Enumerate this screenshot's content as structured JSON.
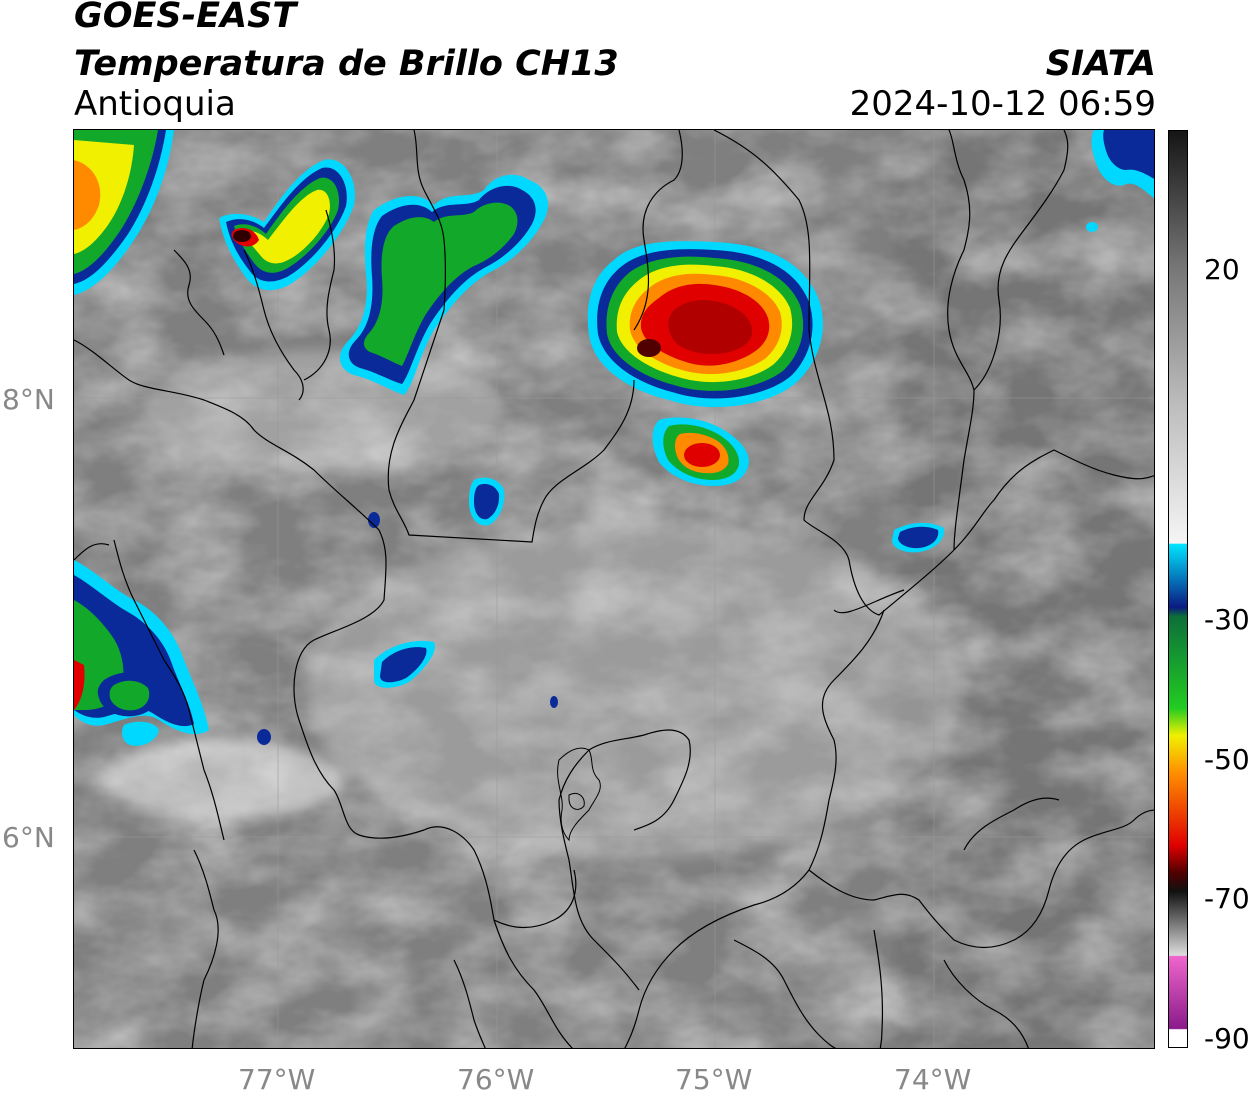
{
  "header": {
    "satellite": "GOES-EAST",
    "product": "Temperatura de Brillo CH13",
    "region": "Antioquia",
    "agency": "SIATA",
    "datetime": "2024-10-12 06:59"
  },
  "map": {
    "lat_ticks": [
      "8°N",
      "6°N"
    ],
    "lon_ticks": [
      "77°W",
      "76°W",
      "75°W",
      "74°W"
    ],
    "grid": true,
    "colors": {
      "background_gray": "#7f7f7f",
      "cloud_white": "#e8e8e8",
      "cold_cyan": "#00c8ff",
      "cold_blue": "#0a2a9a",
      "cold_green": "#12a82a",
      "cold_yellow": "#f0f000",
      "cold_orange": "#ff8a00",
      "cold_red": "#e00000",
      "coldest_dark": "#300000"
    }
  },
  "colorbar": {
    "ticks": [
      "20",
      "-30",
      "-50",
      "-70",
      "-90"
    ],
    "stops": [
      {
        "value": 30,
        "color": "#1a1a1a"
      },
      {
        "value": 20,
        "color": "#7a7a7a"
      },
      {
        "value": 0,
        "color": "#ffffff"
      },
      {
        "value": -21,
        "color": "#f0f0f0"
      },
      {
        "value": -22,
        "color": "#00e5ff"
      },
      {
        "value": -30,
        "color": "#0a1a80"
      },
      {
        "value": -38,
        "color": "#12a832"
      },
      {
        "value": -48,
        "color": "#f0f000"
      },
      {
        "value": -53,
        "color": "#ff9000"
      },
      {
        "value": -60,
        "color": "#e00000"
      },
      {
        "value": -66,
        "color": "#500000"
      },
      {
        "value": -70,
        "color": "#111111"
      },
      {
        "value": -75,
        "color": "#bbbbbb"
      },
      {
        "value": -78,
        "color": "#ee66cc"
      },
      {
        "value": -88,
        "color": "#8a1a8a"
      },
      {
        "value": -90,
        "color": "#ffffff"
      }
    ]
  }
}
